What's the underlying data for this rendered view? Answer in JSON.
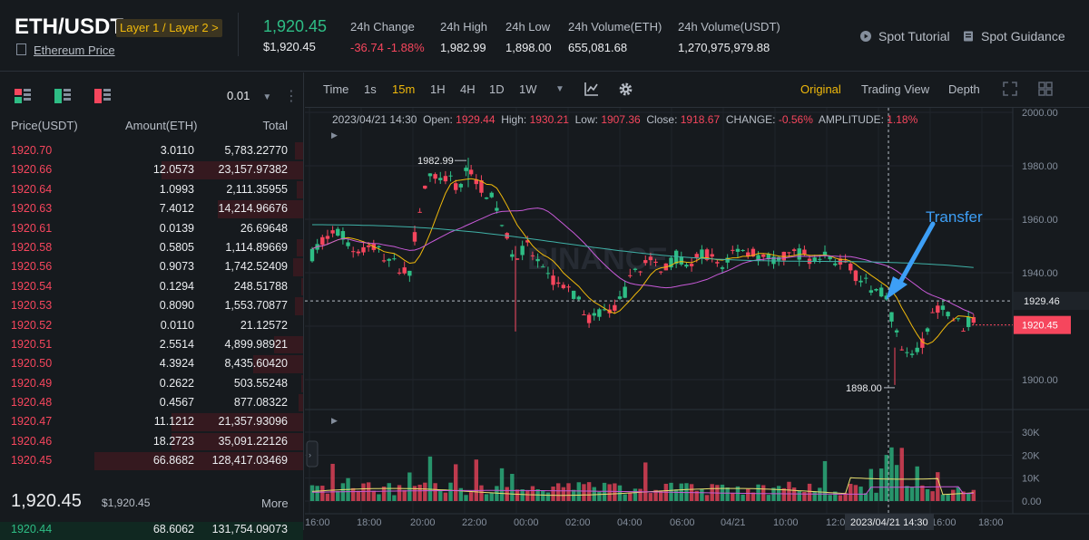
{
  "header": {
    "pair": "ETH/USDT",
    "badge": "Layer 1 / Layer 2 >",
    "coin_link": "Ethereum Price",
    "last_price": "1,920.45",
    "last_price_usd": "$1,920.45",
    "stats": [
      {
        "label": "24h Change",
        "value": "-36.74 -1.88%"
      },
      {
        "label": "24h High",
        "value": "1,982.99"
      },
      {
        "label": "24h Low",
        "value": "1,898.00"
      },
      {
        "label": "24h Volume(ETH)",
        "value": "655,081.68"
      },
      {
        "label": "24h Volume(USDT)",
        "value": "1,270,975,979.88"
      }
    ],
    "links": {
      "spot_tutorial": "Spot Tutorial",
      "spot_guidance": "Spot Guidance"
    }
  },
  "order_book": {
    "tick_size": "0.01",
    "columns": {
      "price": "Price(USDT)",
      "amount": "Amount(ETH)",
      "total": "Total"
    },
    "asks": [
      {
        "price": "1920.70",
        "amount": "3.0110",
        "total": "5,783.22770"
      },
      {
        "price": "1920.66",
        "amount": "12.0573",
        "total": "23,157.97382"
      },
      {
        "price": "1920.64",
        "amount": "1.0993",
        "total": "2,111.35955"
      },
      {
        "price": "1920.63",
        "amount": "7.4012",
        "total": "14,214.96676"
      },
      {
        "price": "1920.61",
        "amount": "0.0139",
        "total": "26.69648"
      },
      {
        "price": "1920.58",
        "amount": "0.5805",
        "total": "1,114.89669"
      },
      {
        "price": "1920.56",
        "amount": "0.9073",
        "total": "1,742.52409"
      },
      {
        "price": "1920.54",
        "amount": "0.1294",
        "total": "248.51788"
      },
      {
        "price": "1920.53",
        "amount": "0.8090",
        "total": "1,553.70877"
      },
      {
        "price": "1920.52",
        "amount": "0.0110",
        "total": "21.12572"
      },
      {
        "price": "1920.51",
        "amount": "2.5514",
        "total": "4,899.98921"
      },
      {
        "price": "1920.50",
        "amount": "4.3924",
        "total": "8,435.60420"
      },
      {
        "price": "1920.49",
        "amount": "0.2622",
        "total": "503.55248"
      },
      {
        "price": "1920.48",
        "amount": "0.4567",
        "total": "877.08322"
      },
      {
        "price": "1920.47",
        "amount": "11.1212",
        "total": "21,357.93096"
      },
      {
        "price": "1920.46",
        "amount": "18.2723",
        "total": "35,091.22126"
      },
      {
        "price": "1920.45",
        "amount": "66.8682",
        "total": "128,417.03469"
      }
    ],
    "ask_depth": [
      0.04,
      0.68,
      0.03,
      0.41,
      0.0,
      0.03,
      0.05,
      0.01,
      0.04,
      0.0,
      0.14,
      0.24,
      0.01,
      0.02,
      0.63,
      0.63,
      1.0
    ],
    "mid_price": "1,920.45",
    "mid_price_usd": "$1,920.45",
    "more": "More",
    "bid_partial": {
      "price": "1920.44",
      "amount": "68.6062",
      "total": "131,754.09073"
    }
  },
  "toolbar": {
    "intervals": [
      "Time",
      "1s",
      "15m",
      "1H",
      "4H",
      "1D",
      "1W"
    ],
    "active_interval": "15m",
    "views": [
      "Original",
      "Trading View",
      "Depth"
    ],
    "active_view": "Original"
  },
  "chart_data": {
    "type": "candlestick",
    "ohlc_readout": {
      "time": "2023/04/21 14:30",
      "open_label": "Open:",
      "open": "1929.44",
      "high_label": "High:",
      "high": "1930.21",
      "low_label": "Low:",
      "low": "1907.36",
      "close_label": "Close:",
      "close": "1918.67",
      "change_label": "CHANGE:",
      "change": "-0.56%",
      "amplitude_label": "AMPLITUDE:",
      "amplitude": "1.18%"
    },
    "price_axis_labels": [
      "2000.00",
      "1980.00",
      "1960.00",
      "1940.00",
      "1920.00",
      "1900.00"
    ],
    "price_ticks": [
      2000,
      1980,
      1960,
      1940,
      1920,
      1900
    ],
    "ylim": [
      1900,
      2000
    ],
    "volume_axis_labels": [
      "30K",
      "20K",
      "10K",
      "0.00"
    ],
    "volume_ticks": [
      30000,
      20000,
      10000,
      0
    ],
    "volume_ylim": [
      0,
      30000
    ],
    "time_axis_labels": [
      "16:00",
      "18:00",
      "20:00",
      "22:00",
      "00:00",
      "02:00",
      "04:00",
      "06:00",
      "04/21",
      "10:00",
      "12:00",
      "16:00",
      "18:00"
    ],
    "crosshair_time": "2023/04/21 14:30",
    "crosshair_price": "1929.46",
    "last_price_tag": "1920.45",
    "high_marker": "1982.99",
    "low_marker": "1898.00",
    "annotation": "Transfer",
    "colors": {
      "up": "#2ebd85",
      "down": "#f6465d",
      "ma7": "#f0b90b",
      "ma25": "#c85ad8",
      "ma99": "#3fb1a7",
      "annotation": "#3d9ff6"
    }
  }
}
